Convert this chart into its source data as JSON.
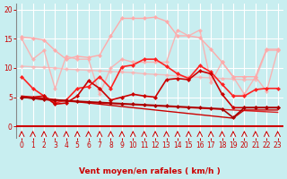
{
  "bg_color": "#c8eef0",
  "grid_color": "#ffffff",
  "xlabel": "Vent moyen/en rafales ( km/h )",
  "ylim": [
    -2,
    21
  ],
  "ylim_display": [
    0,
    20
  ],
  "xlim": [
    -0.5,
    23.5
  ],
  "yticks": [
    0,
    5,
    10,
    15,
    20
  ],
  "xticks": [
    0,
    1,
    2,
    3,
    4,
    5,
    6,
    7,
    8,
    9,
    10,
    11,
    12,
    13,
    14,
    15,
    16,
    17,
    18,
    19,
    20,
    21,
    22,
    23
  ],
  "lines": [
    {
      "y": [
        15.3,
        15.1,
        14.8,
        13.0,
        11.5,
        12.0,
        11.8,
        12.2,
        15.5,
        18.5,
        18.5,
        18.5,
        18.7,
        18.0,
        15.5,
        15.5,
        15.2,
        13.2,
        11.0,
        8.5,
        8.5,
        8.5,
        13.2,
        13.2
      ],
      "color": "#ffaaaa",
      "lw": 1.0,
      "marker": "D",
      "ms": 2.5,
      "alpha": 1.0
    },
    {
      "y": [
        10.3,
        10.2,
        10.1,
        10.0,
        9.8,
        9.7,
        9.6,
        9.5,
        9.4,
        9.3,
        9.2,
        9.0,
        8.9,
        8.8,
        8.6,
        8.5,
        8.4,
        8.3,
        8.2,
        8.1,
        8.0,
        8.0,
        13.0,
        13.0
      ],
      "color": "#ffaaaa",
      "lw": 1.0,
      "marker": "D",
      "ms": 2.5,
      "alpha": 0.7
    },
    {
      "y": [
        15.0,
        11.5,
        13.0,
        6.5,
        12.0,
        11.5,
        11.5,
        5.5,
        10.0,
        11.5,
        11.0,
        11.0,
        11.0,
        11.0,
        16.5,
        15.5,
        16.5,
        7.5,
        11.0,
        8.5,
        5.5,
        8.5,
        6.0,
        13.0
      ],
      "color": "#ffaaaa",
      "lw": 1.0,
      "marker": "D",
      "ms": 2.5,
      "alpha": 0.85
    },
    {
      "y": [
        8.5,
        6.5,
        5.2,
        4.0,
        4.5,
        6.5,
        6.8,
        8.5,
        6.5,
        10.2,
        10.5,
        11.5,
        11.5,
        10.3,
        9.0,
        8.2,
        10.4,
        9.3,
        7.2,
        5.2,
        5.2,
        6.3,
        6.5,
        6.5
      ],
      "color": "#ff2222",
      "lw": 1.2,
      "marker": "D",
      "ms": 2.5,
      "alpha": 1.0
    },
    {
      "y": [
        5.0,
        5.0,
        5.2,
        3.8,
        4.0,
        5.2,
        7.8,
        6.5,
        4.5,
        5.0,
        5.5,
        5.2,
        5.0,
        8.0,
        8.2,
        8.0,
        9.5,
        9.0,
        5.5,
        3.2,
        3.2,
        3.2,
        3.2,
        3.2
      ],
      "color": "#cc0000",
      "lw": 1.2,
      "marker": "D",
      "ms": 2.5,
      "alpha": 1.0
    },
    {
      "y": [
        5.0,
        4.8,
        4.6,
        4.4,
        4.3,
        4.2,
        4.1,
        4.0,
        3.9,
        3.8,
        3.7,
        3.6,
        3.5,
        3.4,
        3.3,
        3.2,
        3.1,
        3.0,
        2.9,
        2.8,
        2.7,
        2.6,
        2.5,
        2.4
      ],
      "color": "#dd2222",
      "lw": 1.0,
      "marker": null,
      "ms": 0,
      "alpha": 1.0
    },
    {
      "y": [
        5.2,
        5.0,
        4.8,
        4.6,
        4.4,
        4.2,
        4.0,
        3.8,
        3.6,
        3.4,
        3.2,
        3.0,
        2.8,
        2.6,
        2.4,
        2.2,
        2.0,
        1.8,
        1.6,
        1.4,
        2.8,
        2.8,
        2.8,
        2.8
      ],
      "color": "#cc0000",
      "lw": 1.0,
      "marker": null,
      "ms": 0,
      "alpha": 1.0
    },
    {
      "y": [
        5.0,
        4.8,
        4.6,
        4.5,
        4.4,
        4.3,
        4.2,
        4.1,
        4.0,
        3.9,
        3.8,
        3.7,
        3.6,
        3.5,
        3.4,
        3.3,
        3.2,
        3.1,
        3.0,
        1.5,
        3.2,
        3.2,
        3.2,
        3.2
      ],
      "color": "#aa0000",
      "lw": 1.2,
      "marker": "D",
      "ms": 2.5,
      "alpha": 1.0
    }
  ],
  "arrow_color": "#cc0000",
  "xlabel_color": "#cc0000",
  "tick_color": "#cc0000",
  "bottom_bar_color": "#cc0000"
}
